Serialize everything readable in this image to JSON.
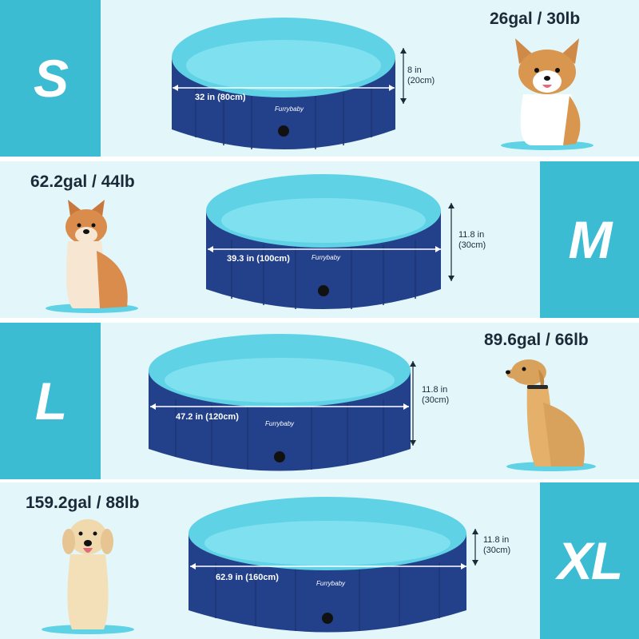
{
  "brand": "Furrybaby",
  "colors": {
    "band_bg": "#e3f6fa",
    "size_box": "#3cbcd3",
    "pool_outer": "#23418a",
    "pool_inner": "#5fd2e6",
    "pool_floor": "#7fe0f0",
    "text_dark": "#1b2a38"
  },
  "sizes": [
    {
      "label": "S",
      "capacity": "26gal / 30lb",
      "diameter": "32 in (80cm)",
      "height_in": "8 in",
      "height_cm": "(20cm)",
      "dog_icon": "corgi-icon"
    },
    {
      "label": "M",
      "capacity": "62.2gal / 44lb",
      "diameter": "39.3 in (100cm)",
      "height_in": "11.8 in",
      "height_cm": "(30cm)",
      "dog_icon": "shiba-inu-icon"
    },
    {
      "label": "L",
      "capacity": "89.6gal / 66lb",
      "diameter": "47.2 in (120cm)",
      "height_in": "11.8 in",
      "height_cm": "(30cm)",
      "dog_icon": "golden-retriever-icon"
    },
    {
      "label": "XL",
      "capacity": "159.2gal / 88lb",
      "diameter": "62.9 in (160cm)",
      "height_in": "11.8 in",
      "height_cm": "(30cm)",
      "dog_icon": "labrador-icon"
    }
  ]
}
